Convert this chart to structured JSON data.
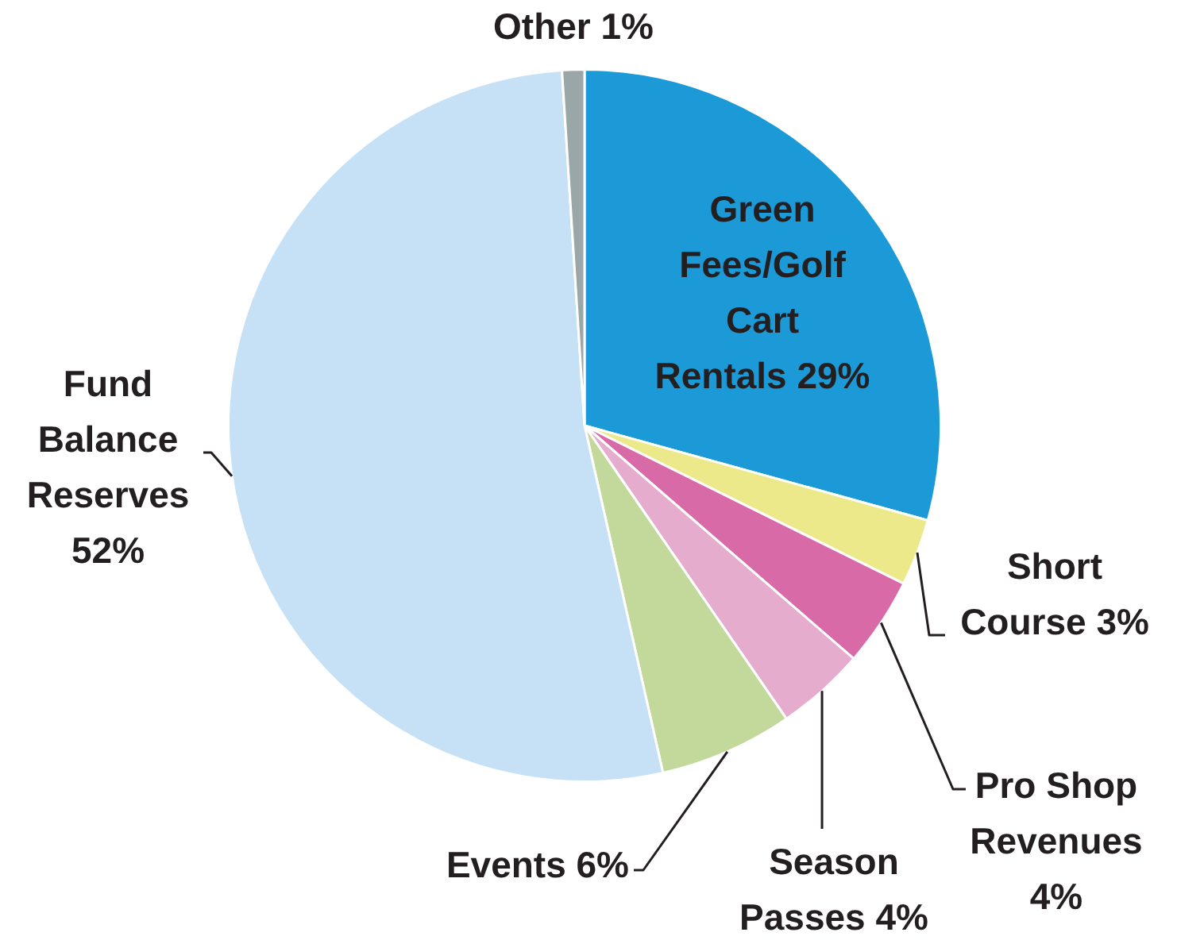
{
  "chart_data": {
    "type": "pie",
    "categories": [
      "Green Fees/Golf Cart Rentals",
      "Short Course",
      "Pro Shop Revenues",
      "Season Passes",
      "Events",
      "Fund Balance Reserves",
      "Other"
    ],
    "values": [
      29,
      3,
      4,
      4,
      6,
      52,
      1
    ],
    "value_labels": [
      "29%",
      "3%",
      "4%",
      "4%",
      "6%",
      "52%",
      "1%"
    ],
    "colors": [
      "#1b9ad7",
      "#ece98a",
      "#d96aa8",
      "#e6acce",
      "#c3d99c",
      "#c6e0f6",
      "#9aa6a8"
    ]
  }
}
